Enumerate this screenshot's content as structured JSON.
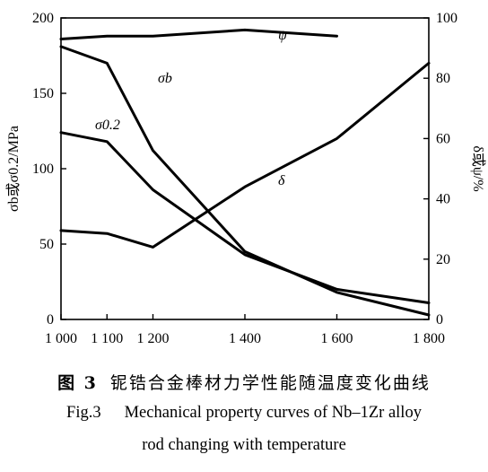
{
  "chart_data": {
    "type": "line",
    "x": [
      1000,
      1100,
      1200,
      1400,
      1600,
      1800
    ],
    "xticks": [
      "1 000",
      "1 100",
      "1 200",
      "1 400",
      "1 600",
      "1 800"
    ],
    "xlim": [
      1000,
      1800
    ],
    "ylim_left": [
      0,
      200
    ],
    "yticks_left": [
      "0",
      "50",
      "100",
      "150",
      "200"
    ],
    "ylim_right": [
      0,
      100
    ],
    "yticks_right": [
      "0",
      "20",
      "40",
      "60",
      "80",
      "100"
    ],
    "ylabel_left": "σb或σ0.2/MPa",
    "ylabel_right": "δ或ψ/%",
    "grid": false,
    "series": [
      {
        "name": "σb",
        "axis": "left",
        "x": [
          1000,
          1100,
          1200,
          1400,
          1600,
          1800
        ],
        "values": [
          181,
          170,
          112,
          45,
          18,
          3
        ]
      },
      {
        "name": "σ0.2",
        "axis": "left",
        "x": [
          1000,
          1100,
          1200,
          1400,
          1600,
          1800
        ],
        "values": [
          124,
          118,
          86,
          43,
          20,
          11
        ]
      },
      {
        "name": "ψ",
        "axis": "right",
        "x": [
          1000,
          1100,
          1200,
          1400,
          1600
        ],
        "values": [
          93,
          94,
          94,
          96,
          94
        ]
      },
      {
        "name": "δ",
        "axis": "right",
        "x": [
          1000,
          1100,
          1200,
          1400,
          1600,
          1800
        ],
        "values": [
          29.5,
          28.5,
          24,
          44,
          60,
          85
        ]
      }
    ]
  },
  "caption": {
    "zh_fig": "图 3",
    "zh_text": "铌锆合金棒材力学性能随温度变化曲线",
    "en_fig": "Fig.3",
    "en_line1": "Mechanical property curves of Nb–1Zr alloy",
    "en_line2": "rod changing with temperature"
  }
}
